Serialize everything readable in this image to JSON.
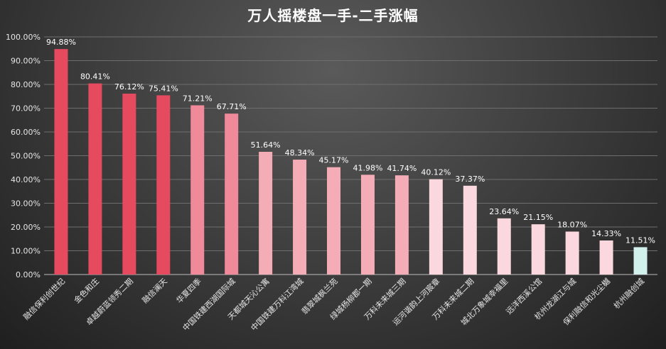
{
  "chart_data": {
    "type": "bar",
    "title": "万人摇楼盘一手-二手涨幅",
    "xlabel": "",
    "ylabel": "",
    "ylim": [
      0,
      100
    ],
    "yticks": [
      "0.00%",
      "10.00%",
      "20.00%",
      "30.00%",
      "40.00%",
      "50.00%",
      "60.00%",
      "70.00%",
      "80.00%",
      "90.00%",
      "100.00%"
    ],
    "grid": true,
    "legend": "none",
    "categories": [
      "融信保利创世纪",
      "金色和庄",
      "卓越蔚蓝领秀二期",
      "融信澜天",
      "华夏四季",
      "中国铁建西湖国际城",
      "天都城天沁公寓",
      "中国铁建万科江湾城",
      "翡翠城枫兰苑",
      "绿城杨柳郡一期",
      "万科未来城三期",
      "运河谐韵上河宸章",
      "万科未来城二期",
      "城北万象城幸福里",
      "远洋西溪公馆",
      "杭州龙湖江与城",
      "保利融信和光尘樾",
      "杭州融创城"
    ],
    "values": [
      94.88,
      80.41,
      76.12,
      75.41,
      71.21,
      67.71,
      51.64,
      48.34,
      45.17,
      41.98,
      41.74,
      40.12,
      37.37,
      23.64,
      21.15,
      18.07,
      14.33,
      11.51
    ],
    "labels": [
      "94.88%",
      "80.41%",
      "76.12%",
      "75.41%",
      "71.21%",
      "67.71%",
      "51.64%",
      "48.34%",
      "45.17%",
      "41.98%",
      "41.74%",
      "40.12%",
      "37.37%",
      "23.64%",
      "21.15%",
      "18.07%",
      "14.33%",
      "11.51%"
    ],
    "colors": [
      "#e64a5f",
      "#e64a5f",
      "#e64a5f",
      "#e64a5f",
      "#f08a9a",
      "#f08a9a",
      "#f4adb7",
      "#f4adb7",
      "#f4adb7",
      "#f4adb7",
      "#f4adb7",
      "#fbd8dd",
      "#fbd8dd",
      "#fbd8dd",
      "#fbd8dd",
      "#fbd8dd",
      "#fbd8dd",
      "#d3f1ec"
    ]
  }
}
